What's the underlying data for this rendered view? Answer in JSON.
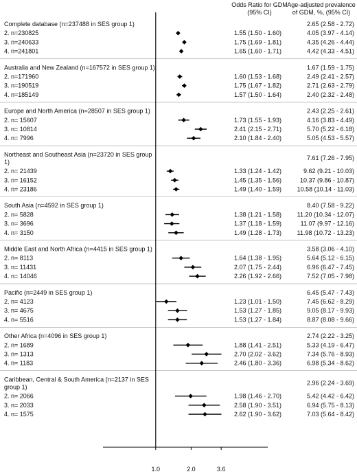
{
  "header": {
    "or_title": "Odds Ratio for GDM",
    "or_sub": "(95% CI)",
    "prev_title": "Age-adjusted prevalence",
    "prev_sub": "of GDM, %, (95% CI)"
  },
  "chart_data": {
    "type": "forest",
    "title": "",
    "xlabel": "",
    "x_scale": "log",
    "x_range": [
      0.9,
      4.2
    ],
    "reference_line": 1.0,
    "x_ticks": [
      "1.0",
      "2.0",
      "3.6"
    ],
    "groups": [
      {
        "label": "Complete database (n=237488 in SES group 1)",
        "ref_prevalence": "2.65 (2.58 - 2.72)",
        "rows": [
          {
            "label": "2. n=230825",
            "or": 1.55,
            "lo": 1.5,
            "hi": 1.6,
            "or_text": "1.55 (1.50 - 1.60)",
            "prev_text": "4.05 (3.97 - 4.14)"
          },
          {
            "label": "3. n=240633",
            "or": 1.75,
            "lo": 1.69,
            "hi": 1.81,
            "or_text": "1.75 (1.69 - 1.81)",
            "prev_text": "4.35 (4.26 - 4.44)"
          },
          {
            "label": "4. n=241801",
            "or": 1.65,
            "lo": 1.6,
            "hi": 1.71,
            "or_text": "1.65 (1.60 - 1.71)",
            "prev_text": "4.42 (4.33 - 4.51)"
          }
        ]
      },
      {
        "label": "Australia and New Zealand (n=167572 in SES group 1)",
        "ref_prevalence": "1.67 (1.59 - 1.75)",
        "rows": [
          {
            "label": "2. n=171960",
            "or": 1.6,
            "lo": 1.53,
            "hi": 1.68,
            "or_text": "1.60 (1.53 - 1.68)",
            "prev_text": "2.49 (2.41 - 2.57)"
          },
          {
            "label": "3. n=190519",
            "or": 1.75,
            "lo": 1.67,
            "hi": 1.82,
            "or_text": "1.75 (1.67 - 1.82)",
            "prev_text": "2.71 (2.63 - 2.79)"
          },
          {
            "label": "4. n=185149",
            "or": 1.57,
            "lo": 1.5,
            "hi": 1.64,
            "or_text": "1.57 (1.50 - 1.64)",
            "prev_text": "2.40 (2.32 - 2.48)"
          }
        ]
      },
      {
        "label": "Europe and North America (n=28507 in SES group 1)",
        "ref_prevalence": "2.43 (2.25 - 2.61)",
        "rows": [
          {
            "label": "2. n= 15607",
            "or": 1.73,
            "lo": 1.55,
            "hi": 1.93,
            "or_text": "1.73 (1.55 - 1.93)",
            "prev_text": "4.16 (3.83 - 4.49)"
          },
          {
            "label": "3. n= 10814",
            "or": 2.41,
            "lo": 2.15,
            "hi": 2.71,
            "or_text": "2.41 (2.15 - 2.71)",
            "prev_text": "5.70 (5.22 - 6.18)"
          },
          {
            "label": "4. n= 7996",
            "or": 2.1,
            "lo": 1.84,
            "hi": 2.4,
            "or_text": "2.10 (1.84 - 2.40)",
            "prev_text": "5.05 (4.53 - 5.57)"
          }
        ]
      },
      {
        "label": "Northeast and Southeast Asia (n=23720 in SES group 1)",
        "ref_prevalence": "7.61 (7.26 - 7.95)",
        "rows": [
          {
            "label": "2. n= 21439",
            "or": 1.33,
            "lo": 1.24,
            "hi": 1.42,
            "or_text": "1.33 (1.24 - 1.42)",
            "prev_text": "9.62 (9.21 - 10.03)"
          },
          {
            "label": "3. n= 16152",
            "or": 1.45,
            "lo": 1.35,
            "hi": 1.56,
            "or_text": "1.45 (1.35 - 1.56)",
            "prev_text": "10.37 (9.86 - 10.87)"
          },
          {
            "label": "4. n= 23186",
            "or": 1.49,
            "lo": 1.4,
            "hi": 1.59,
            "or_text": "1.49 (1.40 - 1.59)",
            "prev_text": "10.58 (10.14 - 11.03)"
          }
        ]
      },
      {
        "label": "South Asia (n=4592 in SES group 1)",
        "ref_prevalence": "8.40 (7.58 - 9.22)",
        "rows": [
          {
            "label": "2. n= 5828",
            "or": 1.38,
            "lo": 1.21,
            "hi": 1.58,
            "or_text": "1.38 (1.21 - 1.58)",
            "prev_text": "11.20 (10.34 - 12.07)"
          },
          {
            "label": "3. n= 3696",
            "or": 1.37,
            "lo": 1.18,
            "hi": 1.59,
            "or_text": "1.37 (1.18 - 1.59)",
            "prev_text": "11.07 (9.97 - 12.16)"
          },
          {
            "label": "4. n= 3150",
            "or": 1.49,
            "lo": 1.28,
            "hi": 1.73,
            "or_text": "1.49 (1.28 - 1.73)",
            "prev_text": "11.98 (10.72 - 13.23)"
          }
        ]
      },
      {
        "label": "Middle East and North Africa (n=4415 in SES group 1)",
        "ref_prevalence": "3.58 (3.06 - 4.10)",
        "rows": [
          {
            "label": "2. n= 8113",
            "or": 1.64,
            "lo": 1.38,
            "hi": 1.95,
            "or_text": "1.64 (1.38 - 1.95)",
            "prev_text": "5.64 (5.12 - 6.15)"
          },
          {
            "label": "3. n= 11431",
            "or": 2.07,
            "lo": 1.75,
            "hi": 2.44,
            "or_text": "2.07 (1.75 - 2.44)",
            "prev_text": "6.96 (6.47 - 7.45)"
          },
          {
            "label": "4. n= 14046",
            "or": 2.26,
            "lo": 1.92,
            "hi": 2.66,
            "or_text": "2.26 (1.92 - 2.66)",
            "prev_text": "7.52 (7.05 - 7.98)"
          }
        ]
      },
      {
        "label": "Pacific (n=2449 in SES group 1)",
        "ref_prevalence": "6.45 (5.47 - 7.43)",
        "rows": [
          {
            "label": "2. n= 4123",
            "or": 1.23,
            "lo": 1.01,
            "hi": 1.5,
            "or_text": "1.23 (1.01 - 1.50)",
            "prev_text": "7.45 (6.62 - 8.29)"
          },
          {
            "label": "3. n= 4675",
            "or": 1.53,
            "lo": 1.27,
            "hi": 1.85,
            "or_text": "1.53 (1.27 - 1.85)",
            "prev_text": "9.05 (8.17 - 9.93)"
          },
          {
            "label": "4. n= 5516",
            "or": 1.53,
            "lo": 1.27,
            "hi": 1.84,
            "or_text": "1.53 (1.27 - 1.84)",
            "prev_text": "8.87 (8.08 - 9.66)"
          }
        ]
      },
      {
        "label": "Other Africa (n=4096 in SES group 1)",
        "ref_prevalence": "2.74 (2.22 - 3.25)",
        "rows": [
          {
            "label": "2. n= 1689",
            "or": 1.88,
            "lo": 1.41,
            "hi": 2.51,
            "or_text": "1.88 (1.41 - 2.51)",
            "prev_text": "5.33 (4.19 - 6.47)"
          },
          {
            "label": "3. n= 1313",
            "or": 2.7,
            "lo": 2.02,
            "hi": 3.62,
            "or_text": "2.70 (2.02 - 3.62)",
            "prev_text": "7.34 (5.76 - 8.93)"
          },
          {
            "label": "4. n= 1183",
            "or": 2.46,
            "lo": 1.8,
            "hi": 3.36,
            "or_text": "2.46 (1.80 - 3.36)",
            "prev_text": "6.98 (5.34 - 8.62)"
          }
        ]
      },
      {
        "label": "Caribbean, Central & South America (n=2137 in SES group 1)",
        "ref_prevalence": "2.96 (2.24 - 3.69)",
        "rows": [
          {
            "label": "2. n= 2066",
            "or": 1.98,
            "lo": 1.46,
            "hi": 2.7,
            "or_text": "1.98 (1.46 - 2.70)",
            "prev_text": "5.42 (4.42 - 6.42)"
          },
          {
            "label": "3. n= 2033",
            "or": 2.58,
            "lo": 1.9,
            "hi": 3.51,
            "or_text": "2.58 (1.90 - 3.51)",
            "prev_text": "6.94 (5.75 - 8.13)"
          },
          {
            "label": "4. n= 1575",
            "or": 2.62,
            "lo": 1.9,
            "hi": 3.62,
            "or_text": "2.62 (1.90 - 3.62)",
            "prev_text": "7.03 (5.64 - 8.42)"
          }
        ]
      }
    ]
  }
}
